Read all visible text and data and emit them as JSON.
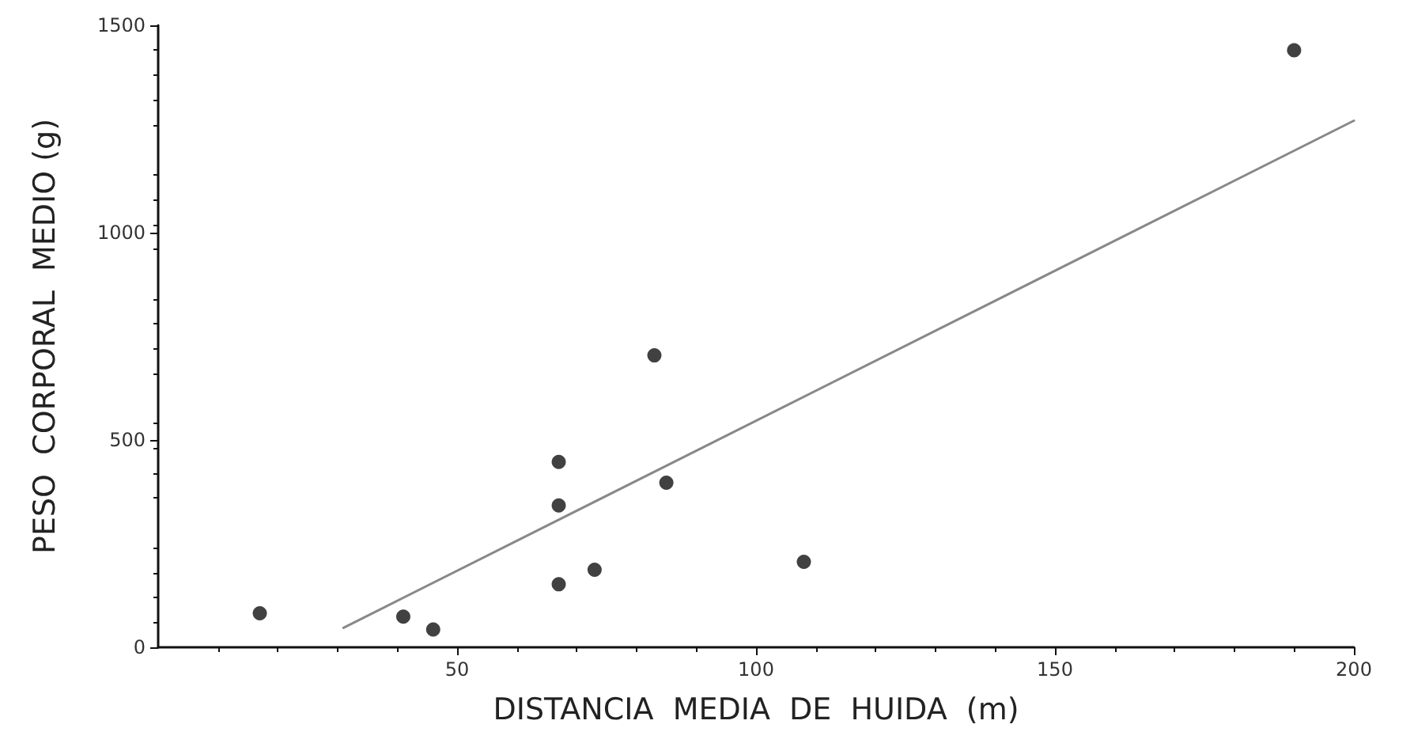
{
  "chart_data": {
    "type": "scatter",
    "xlabel": "DISTANCIA  MEDIA  DE  HUIDA  (m)",
    "ylabel": "PESO  CORPORAL  MEDIO (g)",
    "xlim": [
      0,
      200
    ],
    "xticks": [
      50,
      100,
      150,
      200
    ],
    "ylim": [
      0,
      1500
    ],
    "yticks": [
      0,
      500,
      1000,
      1500
    ],
    "grid": false,
    "marker": "circle",
    "series": [
      {
        "color": "#111111",
        "x": [
          17,
          41,
          46,
          67,
          73,
          67,
          67,
          85,
          108,
          83,
          190
        ],
        "values": [
          82,
          74,
          43,
          152,
          187,
          342,
          447,
          397,
          206,
          704,
          1440
        ]
      },
      {
        "type": "line",
        "color": "#888888",
        "marker": "none",
        "line_style": "solid",
        "x": [
          31,
          200
        ],
        "values": [
          47,
          1270
        ]
      }
    ]
  }
}
